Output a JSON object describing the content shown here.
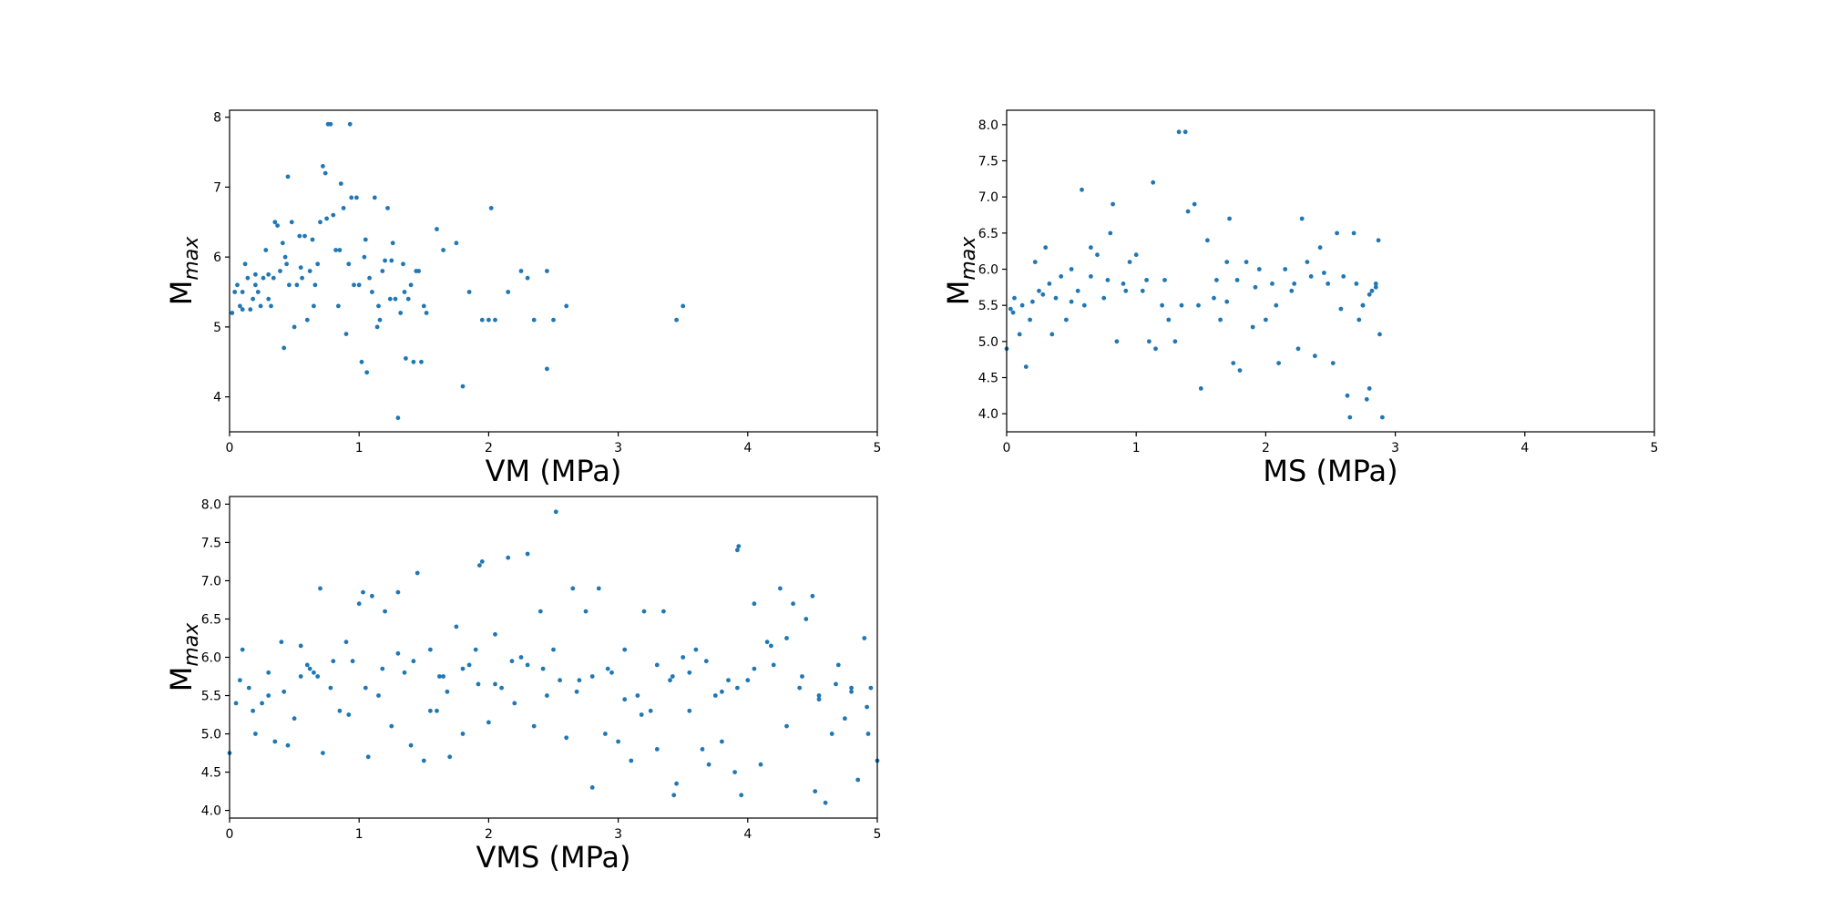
{
  "chart_data": [
    {
      "type": "scatter",
      "xlabel": "VM (MPa)",
      "ylabel": {
        "base": "M",
        "sub": "max"
      },
      "xlim": [
        0,
        5
      ],
      "ylim": [
        3.5,
        8.1
      ],
      "xticks": [
        "0",
        "1",
        "2",
        "3",
        "4",
        "5"
      ],
      "yticks": [
        "4",
        "5",
        "6",
        "7",
        "8"
      ],
      "grid": false,
      "color": "#1f77b4",
      "points": [
        [
          0.02,
          5.2
        ],
        [
          0.04,
          5.5
        ],
        [
          0.06,
          5.6
        ],
        [
          0.08,
          5.3
        ],
        [
          0.1,
          5.5
        ],
        [
          0.12,
          5.9
        ],
        [
          0.14,
          5.7
        ],
        [
          0.16,
          5.25
        ],
        [
          0.18,
          5.4
        ],
        [
          0.2,
          5.6
        ],
        [
          0.22,
          5.5
        ],
        [
          0.24,
          5.3
        ],
        [
          0.26,
          5.7
        ],
        [
          0.28,
          6.1
        ],
        [
          0.3,
          5.4
        ],
        [
          0.32,
          5.3
        ],
        [
          0.34,
          5.7
        ],
        [
          0.35,
          6.5
        ],
        [
          0.37,
          6.45
        ],
        [
          0.39,
          5.8
        ],
        [
          0.41,
          6.2
        ],
        [
          0.42,
          4.7
        ],
        [
          0.43,
          6.0
        ],
        [
          0.44,
          5.9
        ],
        [
          0.46,
          5.6
        ],
        [
          0.48,
          6.5
        ],
        [
          0.5,
          5.0
        ],
        [
          0.52,
          5.6
        ],
        [
          0.54,
          6.3
        ],
        [
          0.56,
          5.7
        ],
        [
          0.58,
          6.3
        ],
        [
          0.6,
          5.1
        ],
        [
          0.62,
          5.8
        ],
        [
          0.64,
          6.25
        ],
        [
          0.66,
          5.6
        ],
        [
          0.68,
          5.9
        ],
        [
          0.7,
          6.5
        ],
        [
          0.72,
          7.3
        ],
        [
          0.74,
          7.2
        ],
        [
          0.76,
          7.9
        ],
        [
          0.78,
          7.9
        ],
        [
          0.8,
          6.6
        ],
        [
          0.82,
          6.1
        ],
        [
          0.84,
          5.3
        ],
        [
          0.86,
          7.05
        ],
        [
          0.88,
          6.7
        ],
        [
          0.9,
          4.9
        ],
        [
          0.92,
          5.9
        ],
        [
          0.94,
          6.85
        ],
        [
          0.96,
          5.6
        ],
        [
          0.93,
          7.9
        ],
        [
          0.98,
          6.85
        ],
        [
          1.0,
          5.6
        ],
        [
          1.02,
          4.5
        ],
        [
          1.04,
          6.0
        ],
        [
          1.06,
          4.35
        ],
        [
          1.08,
          5.7
        ],
        [
          1.1,
          5.5
        ],
        [
          1.12,
          6.85
        ],
        [
          1.14,
          5.0
        ],
        [
          1.16,
          5.1
        ],
        [
          1.18,
          5.8
        ],
        [
          1.2,
          5.95
        ],
        [
          1.22,
          6.7
        ],
        [
          1.24,
          5.4
        ],
        [
          1.26,
          6.2
        ],
        [
          1.28,
          5.4
        ],
        [
          1.3,
          3.7
        ],
        [
          1.32,
          5.2
        ],
        [
          1.34,
          5.9
        ],
        [
          1.36,
          4.55
        ],
        [
          1.38,
          5.4
        ],
        [
          1.4,
          5.6
        ],
        [
          1.42,
          4.5
        ],
        [
          1.44,
          5.8
        ],
        [
          1.46,
          5.8
        ],
        [
          1.48,
          4.5
        ],
        [
          1.5,
          5.3
        ],
        [
          1.52,
          5.2
        ],
        [
          1.6,
          6.4
        ],
        [
          1.65,
          6.1
        ],
        [
          1.75,
          6.2
        ],
        [
          1.8,
          4.15
        ],
        [
          1.85,
          5.5
        ],
        [
          1.95,
          5.1
        ],
        [
          2.0,
          5.1
        ],
        [
          2.02,
          6.7
        ],
        [
          2.05,
          5.1
        ],
        [
          2.15,
          5.5
        ],
        [
          2.25,
          5.8
        ],
        [
          2.3,
          5.7
        ],
        [
          2.35,
          5.1
        ],
        [
          2.45,
          5.8
        ],
        [
          2.45,
          4.4
        ],
        [
          2.5,
          5.1
        ],
        [
          2.6,
          5.3
        ],
        [
          3.45,
          5.1
        ],
        [
          3.5,
          5.3
        ],
        [
          0.1,
          5.25
        ],
        [
          0.2,
          5.75
        ],
        [
          0.3,
          5.75
        ],
        [
          0.45,
          7.15
        ],
        [
          0.55,
          5.85
        ],
        [
          0.65,
          5.3
        ],
        [
          0.75,
          6.55
        ],
        [
          0.85,
          6.1
        ],
        [
          1.05,
          6.25
        ],
        [
          1.15,
          5.3
        ],
        [
          1.25,
          5.95
        ],
        [
          1.35,
          5.5
        ]
      ]
    },
    {
      "type": "scatter",
      "xlabel": "MS (MPa)",
      "ylabel": {
        "base": "M",
        "sub": "max"
      },
      "xlim": [
        0,
        5
      ],
      "ylim": [
        3.75,
        8.2
      ],
      "xticks": [
        "0",
        "1",
        "2",
        "3",
        "4",
        "5"
      ],
      "yticks": [
        "4.0",
        "4.5",
        "5.0",
        "5.5",
        "6.0",
        "6.5",
        "7.0",
        "7.5",
        "8.0"
      ],
      "grid": false,
      "color": "#1f77b4",
      "points": [
        [
          0.0,
          4.9
        ],
        [
          0.03,
          5.45
        ],
        [
          0.06,
          5.6
        ],
        [
          0.1,
          5.1
        ],
        [
          0.12,
          5.5
        ],
        [
          0.15,
          4.65
        ],
        [
          0.18,
          5.3
        ],
        [
          0.22,
          6.1
        ],
        [
          0.25,
          5.7
        ],
        [
          0.3,
          6.3
        ],
        [
          0.33,
          5.8
        ],
        [
          0.38,
          5.6
        ],
        [
          0.42,
          5.9
        ],
        [
          0.46,
          5.3
        ],
        [
          0.5,
          6.0
        ],
        [
          0.55,
          5.7
        ],
        [
          0.58,
          7.1
        ],
        [
          0.6,
          5.5
        ],
        [
          0.65,
          6.3
        ],
        [
          0.7,
          6.2
        ],
        [
          0.75,
          5.6
        ],
        [
          0.8,
          6.5
        ],
        [
          0.82,
          6.9
        ],
        [
          0.85,
          5.0
        ],
        [
          0.9,
          5.8
        ],
        [
          0.95,
          6.1
        ],
        [
          1.0,
          6.2
        ],
        [
          1.05,
          5.7
        ],
        [
          1.1,
          5.0
        ],
        [
          1.13,
          7.2
        ],
        [
          1.15,
          4.9
        ],
        [
          1.2,
          5.5
        ],
        [
          1.25,
          5.3
        ],
        [
          1.3,
          5.0
        ],
        [
          1.33,
          7.9
        ],
        [
          1.38,
          7.9
        ],
        [
          1.4,
          6.8
        ],
        [
          1.45,
          6.9
        ],
        [
          1.5,
          4.35
        ],
        [
          1.55,
          6.4
        ],
        [
          1.6,
          5.6
        ],
        [
          1.65,
          5.3
        ],
        [
          1.7,
          6.1
        ],
        [
          1.72,
          6.7
        ],
        [
          1.75,
          4.7
        ],
        [
          1.8,
          4.6
        ],
        [
          1.85,
          6.1
        ],
        [
          1.9,
          5.2
        ],
        [
          1.95,
          6.0
        ],
        [
          2.0,
          5.3
        ],
        [
          2.05,
          5.8
        ],
        [
          2.1,
          4.7
        ],
        [
          2.15,
          6.0
        ],
        [
          2.2,
          5.7
        ],
        [
          2.25,
          4.9
        ],
        [
          2.28,
          6.7
        ],
        [
          2.32,
          6.1
        ],
        [
          2.38,
          4.8
        ],
        [
          2.42,
          6.3
        ],
        [
          2.48,
          5.8
        ],
        [
          2.52,
          4.7
        ],
        [
          2.55,
          6.5
        ],
        [
          2.6,
          5.9
        ],
        [
          2.63,
          4.25
        ],
        [
          2.65,
          3.95
        ],
        [
          2.68,
          6.5
        ],
        [
          2.72,
          5.3
        ],
        [
          2.75,
          5.5
        ],
        [
          2.78,
          4.2
        ],
        [
          2.8,
          4.35
        ],
        [
          2.82,
          5.7
        ],
        [
          2.85,
          5.8
        ],
        [
          2.87,
          6.4
        ],
        [
          2.88,
          5.1
        ],
        [
          2.9,
          3.95
        ],
        [
          0.05,
          5.4
        ],
        [
          0.2,
          5.55
        ],
        [
          0.35,
          5.1
        ],
        [
          0.5,
          5.55
        ],
        [
          0.65,
          5.9
        ],
        [
          0.78,
          5.85
        ],
        [
          0.92,
          5.7
        ],
        [
          1.08,
          5.85
        ],
        [
          1.22,
          5.85
        ],
        [
          1.35,
          5.5
        ],
        [
          1.48,
          5.5
        ],
        [
          1.62,
          5.85
        ],
        [
          1.78,
          5.85
        ],
        [
          1.92,
          5.75
        ],
        [
          2.08,
          5.5
        ],
        [
          2.22,
          5.8
        ],
        [
          2.35,
          5.9
        ],
        [
          2.45,
          5.95
        ],
        [
          2.58,
          5.45
        ],
        [
          2.7,
          5.8
        ],
        [
          2.75,
          5.5
        ],
        [
          2.8,
          5.65
        ],
        [
          2.85,
          5.75
        ],
        [
          0.28,
          5.65
        ],
        [
          1.7,
          5.55
        ]
      ]
    },
    {
      "type": "scatter",
      "xlabel": "VMS (MPa)",
      "ylabel": {
        "base": "M",
        "sub": "max"
      },
      "xlim": [
        0,
        5
      ],
      "ylim": [
        3.9,
        8.1
      ],
      "xticks": [
        "0",
        "1",
        "2",
        "3",
        "4",
        "5"
      ],
      "yticks": [
        "4.0",
        "4.5",
        "5.0",
        "5.5",
        "6.0",
        "6.5",
        "7.0",
        "7.5",
        "8.0"
      ],
      "grid": false,
      "color": "#1f77b4",
      "points": [
        [
          0.0,
          4.75
        ],
        [
          0.05,
          5.4
        ],
        [
          0.1,
          6.1
        ],
        [
          0.15,
          5.6
        ],
        [
          0.2,
          5.0
        ],
        [
          0.25,
          5.4
        ],
        [
          0.3,
          5.8
        ],
        [
          0.35,
          4.9
        ],
        [
          0.4,
          6.2
        ],
        [
          0.45,
          4.85
        ],
        [
          0.5,
          5.2
        ],
        [
          0.55,
          6.15
        ],
        [
          0.6,
          5.9
        ],
        [
          0.65,
          5.8
        ],
        [
          0.7,
          6.9
        ],
        [
          0.72,
          4.75
        ],
        [
          0.78,
          5.6
        ],
        [
          0.85,
          5.3
        ],
        [
          0.9,
          6.2
        ],
        [
          0.95,
          5.95
        ],
        [
          1.0,
          6.7
        ],
        [
          1.03,
          6.85
        ],
        [
          1.07,
          4.7
        ],
        [
          1.1,
          6.8
        ],
        [
          1.15,
          5.5
        ],
        [
          1.2,
          6.6
        ],
        [
          1.25,
          5.1
        ],
        [
          1.3,
          6.85
        ],
        [
          1.35,
          5.8
        ],
        [
          1.4,
          4.85
        ],
        [
          1.45,
          7.1
        ],
        [
          1.5,
          4.65
        ],
        [
          1.55,
          6.1
        ],
        [
          1.6,
          5.3
        ],
        [
          1.65,
          5.75
        ],
        [
          1.7,
          4.7
        ],
        [
          1.75,
          6.4
        ],
        [
          1.8,
          5.0
        ],
        [
          1.85,
          5.9
        ],
        [
          1.9,
          6.1
        ],
        [
          1.93,
          7.2
        ],
        [
          1.95,
          7.25
        ],
        [
          2.0,
          5.15
        ],
        [
          2.05,
          6.3
        ],
        [
          2.1,
          5.6
        ],
        [
          2.15,
          7.3
        ],
        [
          2.2,
          5.4
        ],
        [
          2.25,
          6.0
        ],
        [
          2.3,
          7.35
        ],
        [
          2.35,
          5.1
        ],
        [
          2.4,
          6.6
        ],
        [
          2.45,
          5.5
        ],
        [
          2.5,
          6.1
        ],
        [
          2.52,
          7.9
        ],
        [
          2.6,
          4.95
        ],
        [
          2.65,
          6.9
        ],
        [
          2.7,
          5.7
        ],
        [
          2.75,
          6.6
        ],
        [
          2.8,
          4.3
        ],
        [
          2.85,
          6.9
        ],
        [
          2.9,
          5.0
        ],
        [
          2.95,
          5.8
        ],
        [
          3.0,
          4.9
        ],
        [
          3.05,
          6.1
        ],
        [
          3.1,
          4.65
        ],
        [
          3.15,
          5.5
        ],
        [
          3.2,
          6.6
        ],
        [
          3.25,
          5.3
        ],
        [
          3.3,
          4.8
        ],
        [
          3.35,
          6.6
        ],
        [
          3.4,
          5.7
        ],
        [
          3.43,
          4.2
        ],
        [
          3.45,
          4.35
        ],
        [
          3.5,
          6.0
        ],
        [
          3.55,
          5.3
        ],
        [
          3.6,
          6.1
        ],
        [
          3.65,
          4.8
        ],
        [
          3.7,
          4.6
        ],
        [
          3.75,
          5.5
        ],
        [
          3.8,
          4.9
        ],
        [
          3.85,
          5.7
        ],
        [
          3.9,
          4.5
        ],
        [
          3.92,
          7.4
        ],
        [
          3.93,
          7.45
        ],
        [
          3.95,
          4.2
        ],
        [
          4.0,
          5.7
        ],
        [
          4.05,
          6.7
        ],
        [
          4.1,
          4.6
        ],
        [
          4.15,
          6.2
        ],
        [
          4.2,
          5.9
        ],
        [
          4.25,
          6.9
        ],
        [
          4.3,
          5.1
        ],
        [
          4.35,
          6.7
        ],
        [
          4.4,
          5.6
        ],
        [
          4.45,
          6.5
        ],
        [
          4.5,
          6.8
        ],
        [
          4.52,
          4.25
        ],
        [
          4.55,
          5.5
        ],
        [
          4.6,
          4.1
        ],
        [
          4.65,
          5.0
        ],
        [
          4.7,
          5.9
        ],
        [
          4.75,
          5.2
        ],
        [
          4.8,
          5.6
        ],
        [
          4.85,
          4.4
        ],
        [
          4.9,
          6.25
        ],
        [
          4.93,
          5.0
        ],
        [
          4.95,
          5.6
        ],
        [
          5.0,
          4.65
        ],
        [
          0.08,
          5.7
        ],
        [
          0.3,
          5.5
        ],
        [
          0.55,
          5.75
        ],
        [
          0.8,
          5.95
        ],
        [
          1.05,
          5.6
        ],
        [
          1.3,
          6.05
        ],
        [
          1.55,
          5.3
        ],
        [
          1.8,
          5.85
        ],
        [
          2.05,
          5.65
        ],
        [
          2.3,
          5.9
        ],
        [
          2.55,
          5.7
        ],
        [
          2.8,
          5.75
        ],
        [
          3.05,
          5.45
        ],
        [
          3.3,
          5.9
        ],
        [
          3.55,
          5.8
        ],
        [
          3.8,
          5.55
        ],
        [
          4.05,
          5.85
        ],
        [
          4.3,
          6.25
        ],
        [
          4.55,
          5.45
        ],
        [
          4.8,
          5.55
        ],
        [
          0.18,
          5.3
        ],
        [
          0.42,
          5.55
        ],
        [
          0.68,
          5.75
        ],
        [
          0.92,
          5.25
        ],
        [
          1.18,
          5.85
        ],
        [
          1.42,
          5.95
        ],
        [
          1.68,
          5.55
        ],
        [
          1.92,
          5.65
        ],
        [
          2.18,
          5.95
        ],
        [
          2.42,
          5.85
        ],
        [
          2.68,
          5.55
        ],
        [
          2.92,
          5.85
        ],
        [
          3.18,
          5.25
        ],
        [
          3.42,
          5.75
        ],
        [
          3.68,
          5.95
        ],
        [
          3.92,
          5.6
        ],
        [
          4.18,
          6.15
        ],
        [
          4.42,
          5.75
        ],
        [
          4.68,
          5.65
        ],
        [
          4.92,
          5.35
        ],
        [
          0.62,
          5.85
        ],
        [
          1.62,
          5.75
        ]
      ]
    }
  ]
}
